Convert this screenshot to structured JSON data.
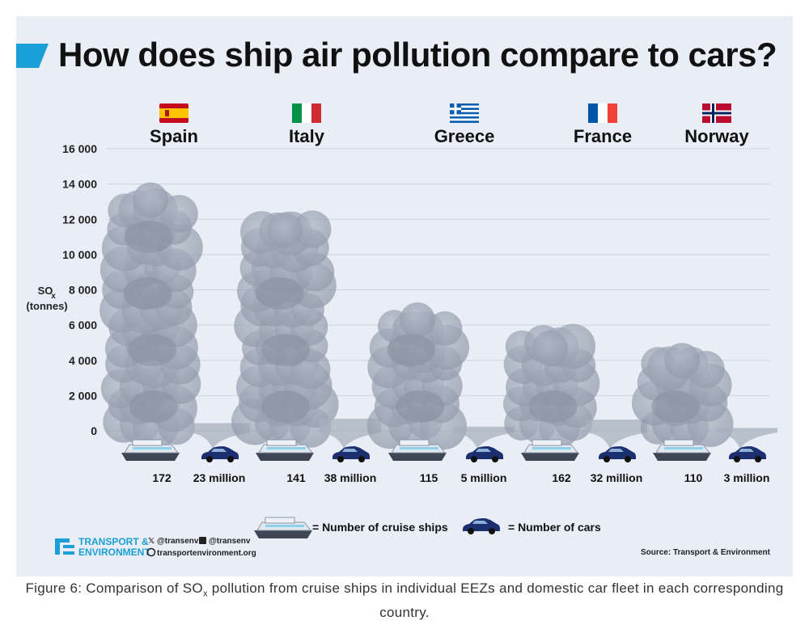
{
  "title": "How does ship air pollution compare to cars?",
  "caption": {
    "pre": "Figure 6: Comparison of SO",
    "sub": "x",
    "post": " pollution from cruise ships in individual EEZs and domestic car fleet in each corresponding country."
  },
  "chart_data": {
    "type": "bar",
    "title": "How does ship air pollution compare to cars?",
    "ylabel": {
      "main": "SO",
      "sub": "x",
      "unit": "(tonnes)"
    },
    "ylim": [
      0,
      16000
    ],
    "yticks": [
      {
        "value": 0,
        "label": "0"
      },
      {
        "value": 2000,
        "label": "2 000"
      },
      {
        "value": 4000,
        "label": "4 000"
      },
      {
        "value": 6000,
        "label": "6 000"
      },
      {
        "value": 8000,
        "label": "8 000"
      },
      {
        "value": 10000,
        "label": "10 000"
      },
      {
        "value": 12000,
        "label": "12 000"
      },
      {
        "value": 14000,
        "label": "14 000"
      },
      {
        "value": 16000,
        "label": "16 000"
      }
    ],
    "categories": [
      "Spain",
      "Italy",
      "Greece",
      "France",
      "Norway"
    ],
    "series": [
      {
        "name": "Cruise ships",
        "values": [
          14000,
          12300,
          7200,
          5600,
          4900
        ]
      },
      {
        "name": "Cars",
        "values": [
          350,
          600,
          150,
          550,
          80
        ]
      }
    ],
    "counts": [
      {
        "ships": "172",
        "cars": "23 million"
      },
      {
        "ships": "141",
        "cars": "38 million"
      },
      {
        "ships": "115",
        "cars": "5 million"
      },
      {
        "ships": "162",
        "cars": "32 million"
      },
      {
        "ships": "110",
        "cars": "3 million"
      }
    ],
    "flags": [
      "spain-flag",
      "italy-flag",
      "greece-flag",
      "france-flag",
      "norway-flag"
    ],
    "legend": {
      "ships": "= Number of cruise ships",
      "cars": "= Number of cars"
    },
    "source": "Source: Transport & Environment"
  },
  "branding": {
    "logo_line1": "TRANSPORT &",
    "logo_line2": "ENVIRONMENT",
    "twitter": "@transenv",
    "facebook": "@transenv",
    "website": "transportenvironment.org"
  },
  "colors": {
    "accent": "#1a9fd6",
    "smoke": "#9aa4b3",
    "car": "#1c2f6e",
    "grid": "#cdd3de"
  }
}
